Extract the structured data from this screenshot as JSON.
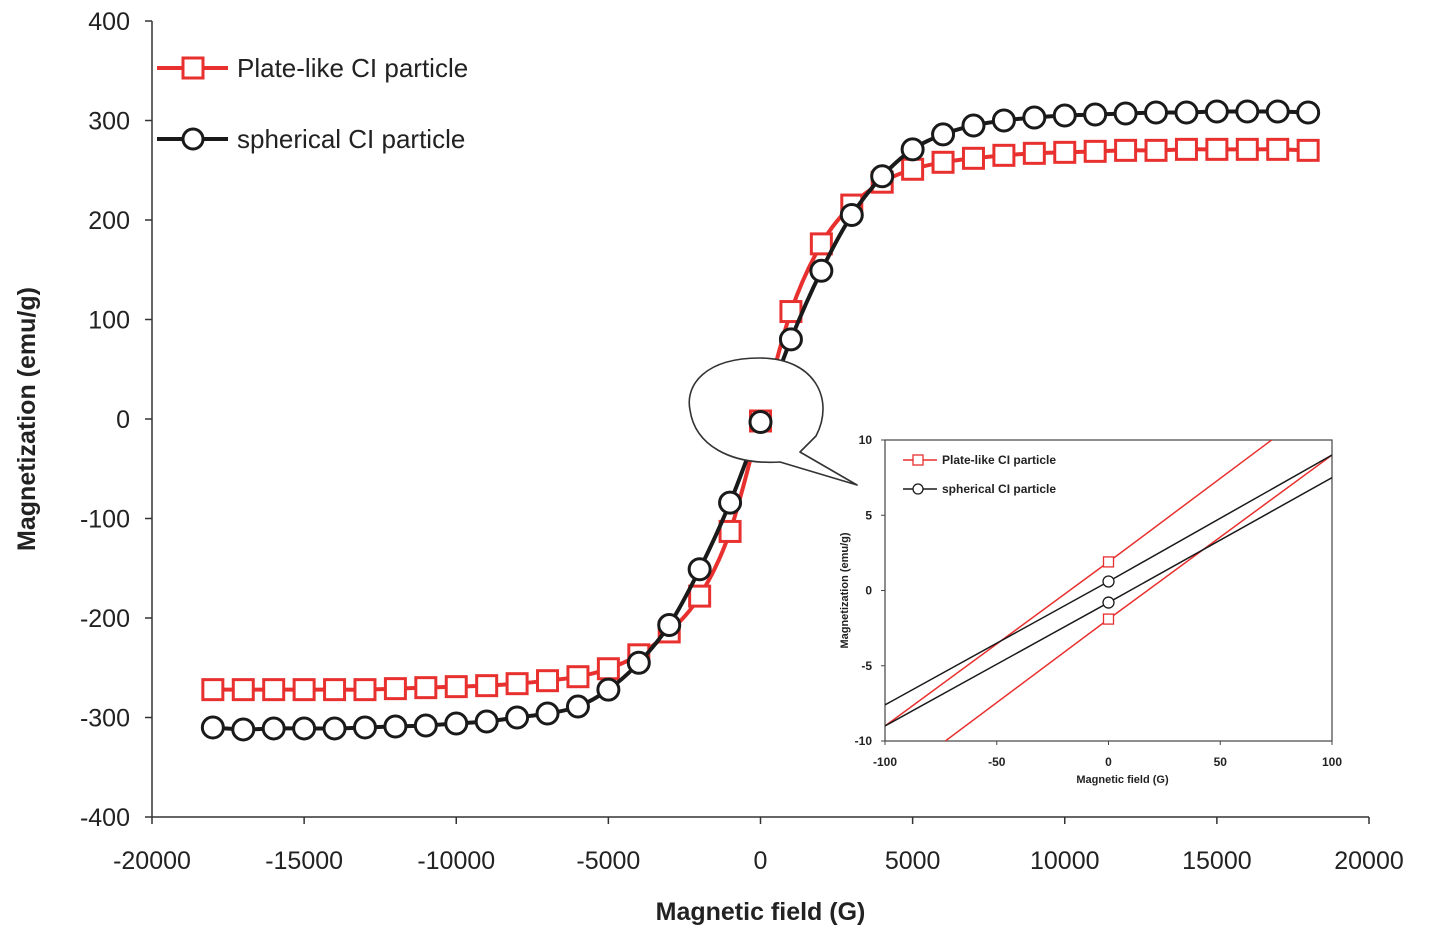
{
  "chart_data": [
    {
      "type": "line",
      "title": "",
      "xlabel": "Magnetic field (G)",
      "ylabel": "Magnetization (emu/g)",
      "xlim": [
        -20000,
        20000
      ],
      "ylim": [
        -400,
        400
      ],
      "xticks": [
        -20000,
        -15000,
        -10000,
        -5000,
        0,
        5000,
        10000,
        15000,
        20000
      ],
      "yticks": [
        -400,
        -300,
        -200,
        -100,
        0,
        100,
        200,
        300,
        400
      ],
      "grid": false,
      "legend_position": "top-left",
      "x": [
        -18000,
        -17000,
        -16000,
        -15000,
        -14000,
        -13000,
        -12000,
        -11000,
        -10000,
        -9000,
        -8000,
        -7000,
        -6000,
        -5000,
        -4000,
        -3000,
        -2000,
        -1000,
        0,
        1000,
        2000,
        3000,
        4000,
        5000,
        6000,
        7000,
        8000,
        9000,
        10000,
        11000,
        12000,
        13000,
        14000,
        15000,
        16000,
        17000,
        18000
      ],
      "series": [
        {
          "name": "Plate-like CI particle",
          "color": "#e8312f",
          "marker": "square",
          "values": [
            -272,
            -272,
            -272,
            -272,
            -272,
            -272,
            -271,
            -270,
            -269,
            -268,
            -266,
            -263,
            -259,
            -251,
            -237,
            -214,
            -178,
            -113,
            -2,
            108,
            176,
            215,
            238,
            251,
            258,
            262,
            265,
            267,
            268,
            269,
            270,
            270,
            271,
            271,
            271,
            271,
            270
          ]
        },
        {
          "name": "spherical CI particle",
          "color": "#1a1a1a",
          "marker": "circle",
          "values": [
            -310,
            -312,
            -311,
            -311,
            -311,
            -310,
            -309,
            -308,
            -306,
            -304,
            -300,
            -296,
            -289,
            -272,
            -245,
            -207,
            -151,
            -84,
            -3,
            80,
            149,
            205,
            244,
            271,
            286,
            295,
            300,
            303,
            305,
            306,
            307,
            308,
            308,
            309,
            309,
            309,
            308
          ]
        }
      ]
    },
    {
      "type": "line",
      "title": "",
      "xlabel": "Magnetic field (G)",
      "ylabel": "Magnetization (emu/g)",
      "xlim": [
        -100,
        100
      ],
      "ylim": [
        -10,
        10
      ],
      "xticks": [
        -100,
        -50,
        0,
        50,
        100
      ],
      "yticks": [
        -10,
        -5,
        0,
        5,
        10
      ],
      "grid": false,
      "legend_position": "top-left",
      "series": [
        {
          "name": "Plate-like CI particle",
          "color": "#e8312f",
          "marker": "square",
          "branch": "upper",
          "x": [
            -100,
            0,
            73
          ],
          "values": [
            -9,
            1.9,
            10
          ]
        },
        {
          "name": "",
          "color": "#e8312f",
          "marker": "square",
          "branch": "lower",
          "x": [
            -73,
            0,
            100
          ],
          "values": [
            -10,
            -1.9,
            9
          ]
        },
        {
          "name": "spherical CI particle",
          "color": "#1a1a1a",
          "marker": "circle",
          "branch": "upper",
          "x": [
            -100,
            0,
            100
          ],
          "values": [
            -7.6,
            0.6,
            9
          ]
        },
        {
          "name": "",
          "color": "#1a1a1a",
          "marker": "circle",
          "branch": "lower",
          "x": [
            -100,
            0,
            100
          ],
          "values": [
            -9,
            -0.8,
            7.5
          ]
        }
      ]
    }
  ]
}
